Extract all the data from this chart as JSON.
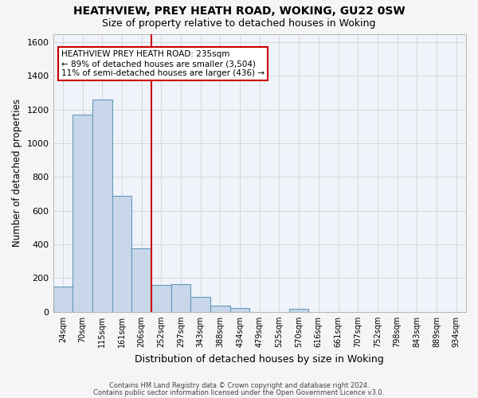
{
  "title1": "HEATHVIEW, PREY HEATH ROAD, WOKING, GU22 0SW",
  "title2": "Size of property relative to detached houses in Woking",
  "xlabel": "Distribution of detached houses by size in Woking",
  "ylabel": "Number of detached properties",
  "categories": [
    "24sqm",
    "70sqm",
    "115sqm",
    "161sqm",
    "206sqm",
    "252sqm",
    "297sqm",
    "343sqm",
    "388sqm",
    "434sqm",
    "479sqm",
    "525sqm",
    "570sqm",
    "616sqm",
    "661sqm",
    "707sqm",
    "752sqm",
    "798sqm",
    "843sqm",
    "889sqm",
    "934sqm"
  ],
  "values": [
    150,
    1170,
    1260,
    690,
    375,
    160,
    165,
    90,
    35,
    25,
    0,
    0,
    18,
    0,
    0,
    0,
    0,
    0,
    0,
    0,
    0
  ],
  "bar_color": "#c8d8ea",
  "bar_edge_color": "#6699bb",
  "grid_color": "#cccccc",
  "vline_color": "#cc0000",
  "vline_x": 5.0,
  "annotation_box": {
    "text_line1": "HEATHVIEW PREY HEATH ROAD: 235sqm",
    "text_line2": "← 89% of detached houses are smaller (3,504)",
    "text_line3": "11% of semi-detached houses are larger (436) →",
    "box_color": "#cc0000",
    "fill_color": "#ffffff"
  },
  "ylim": [
    0,
    1650
  ],
  "yticks": [
    0,
    200,
    400,
    600,
    800,
    1000,
    1200,
    1400,
    1600
  ],
  "footer1": "Contains HM Land Registry data © Crown copyright and database right 2024.",
  "footer2": "Contains public sector information licensed under the Open Government Licence v3.0.",
  "bg_color": "#f5f5f5",
  "plot_bg_color": "#f0f4fa"
}
